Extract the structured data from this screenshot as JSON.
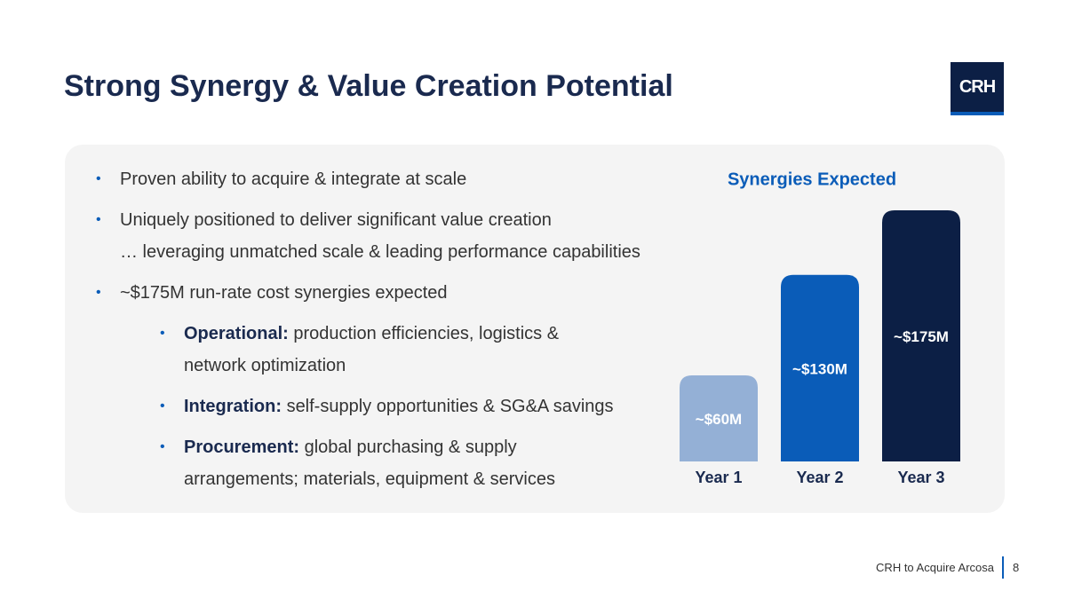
{
  "header": {
    "title": "Strong Synergy & Value Creation Potential",
    "logo": "CRH"
  },
  "bullets": [
    {
      "text": "Proven ability to acquire & integrate at scale"
    },
    {
      "text": "Uniquely positioned to deliver significant value creation",
      "continuation": "… leveraging unmatched scale & leading performance capabilities"
    },
    {
      "text": "~$175M run-rate cost synergies expected",
      "sub": [
        {
          "label": "Operational:",
          "text": "production efficiencies, logistics & network optimization"
        },
        {
          "label": "Integration:",
          "text": "self-supply opportunities & SG&A savings"
        },
        {
          "label": "Procurement:",
          "text": "global purchasing & supply arrangements; materials, equipment & services"
        }
      ]
    }
  ],
  "chart_data": {
    "type": "bar",
    "title": "Synergies Expected",
    "categories": [
      "Year 1",
      "Year 2",
      "Year 3"
    ],
    "values": [
      60,
      130,
      175
    ],
    "value_labels": [
      "~$60M",
      "~$130M",
      "~$175M"
    ],
    "colors": [
      "#94b0d6",
      "#0a5cb8",
      "#0c1f45"
    ]
  },
  "footer": {
    "text": "CRH to Acquire Arcosa",
    "page": "8"
  }
}
